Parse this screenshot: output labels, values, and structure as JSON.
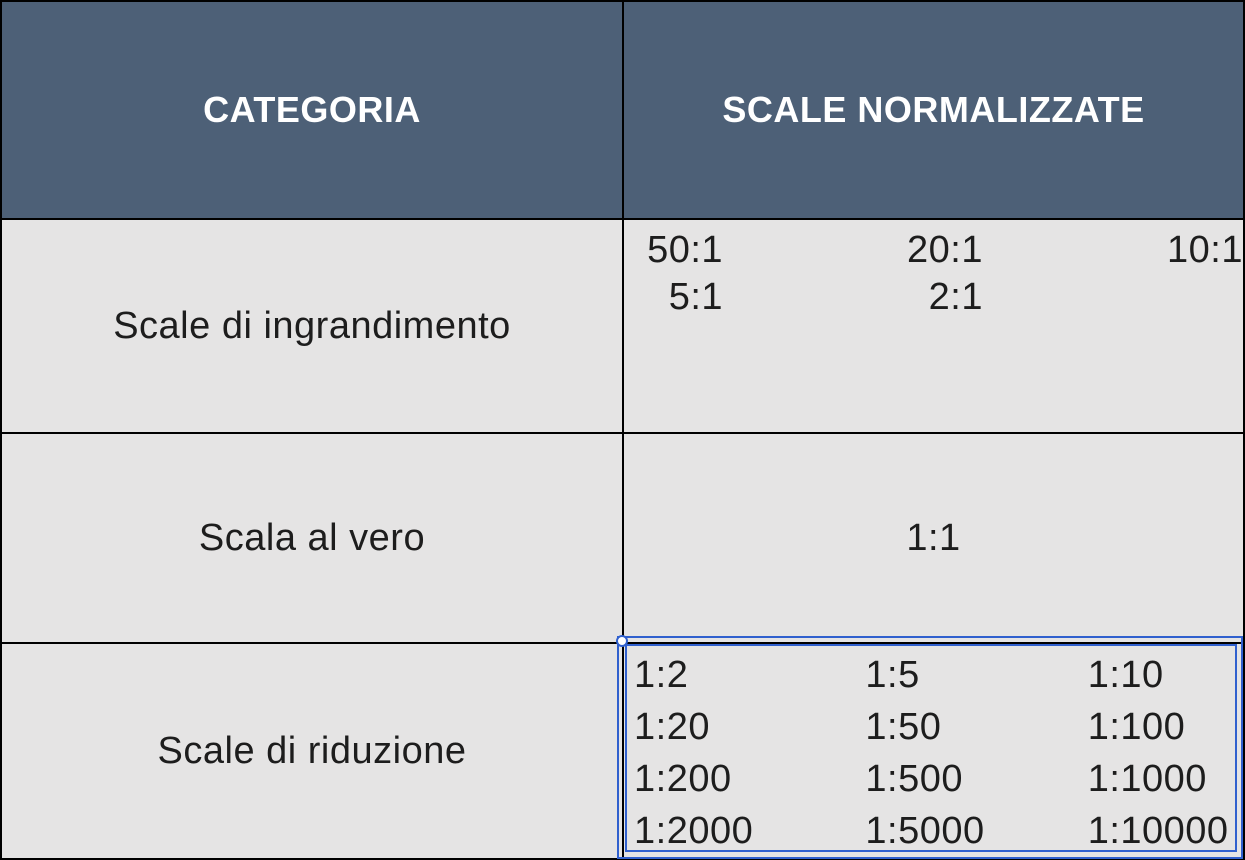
{
  "table": {
    "header": {
      "col1": "CATEGORIA",
      "col2": "SCALE NORMALIZZATE"
    },
    "rows": [
      {
        "category": "Scale di ingrandimento",
        "lines": [
          [
            "50:1",
            "20:1",
            "10:1"
          ],
          [
            "5:1",
            "2:1",
            ""
          ]
        ]
      },
      {
        "category": "Scala al vero",
        "lines": [
          [
            "1:1"
          ]
        ]
      },
      {
        "category": "Scale di riduzione",
        "selected": true,
        "lines": [
          [
            "1:2",
            "1:5",
            "1:10"
          ],
          [
            "1:20",
            "1:50",
            "1:100"
          ],
          [
            "1:200",
            "1:500",
            "1:1000"
          ],
          [
            "1:2000",
            "1:5000",
            "1:10000"
          ]
        ]
      }
    ]
  },
  "colors": {
    "header_bg": "#4D6077",
    "header_text": "#FFFFFF",
    "cell_bg": "#E5E4E4",
    "grid_border": "#000000",
    "body_text": "#1D1D1D",
    "selection_blue": "#3060CE"
  },
  "selection": {
    "selected_cell": "row-riduzione-values"
  }
}
